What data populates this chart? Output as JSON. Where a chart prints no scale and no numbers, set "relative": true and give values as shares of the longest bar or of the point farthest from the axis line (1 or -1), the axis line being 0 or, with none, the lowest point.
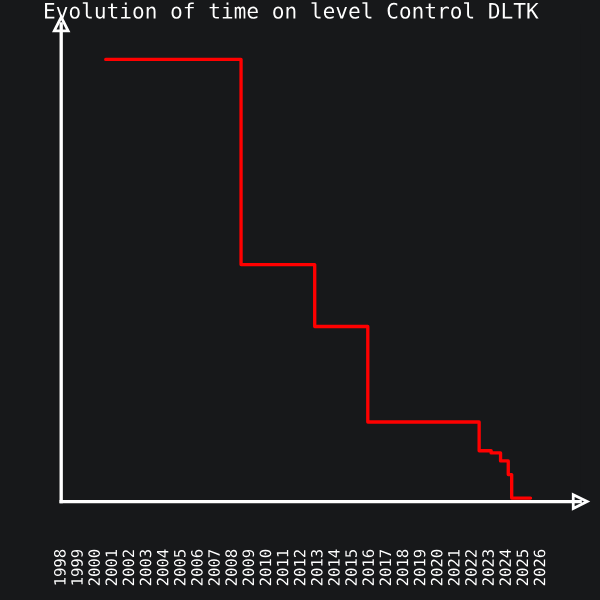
{
  "chart_data": {
    "type": "step",
    "title": "Evolution of time on level Control DLTK",
    "relative": true,
    "x": [
      2000.6,
      2008.5,
      2012.8,
      2015.9,
      2022.4,
      2023.1,
      2023.65,
      2024.1,
      2024.3,
      2025.4
    ],
    "series": [
      {
        "color": "#ff0000",
        "values": [
          1,
          0.536,
          0.396,
          0.18,
          0.115,
          0.11,
          0.092,
          0.061,
          0.008,
          0.008
        ]
      }
    ],
    "xlim": [
      1998,
      2028.3
    ],
    "xticks": [
      1998,
      1999,
      2000,
      2001,
      2002,
      2003,
      2004,
      2005,
      2006,
      2007,
      2008,
      2009,
      2010,
      2011,
      2012,
      2013,
      2014,
      2015,
      2016,
      2017,
      2018,
      2019,
      2020,
      2021,
      2022,
      2023,
      2024,
      2025,
      2026
    ],
    "grid": false,
    "legend": false
  }
}
